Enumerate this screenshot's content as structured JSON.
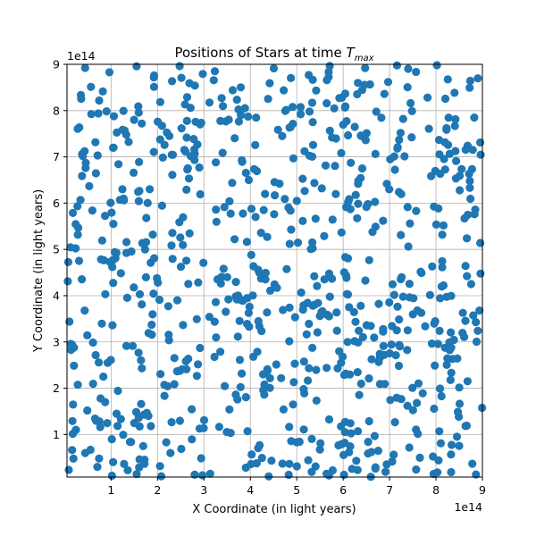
{
  "chart_data": {
    "type": "scatter",
    "title": "Positions of Stars at time T_max",
    "title_main": "Positions of Stars at time ",
    "title_italic": "T",
    "title_subscript": "max",
    "xlabel": "X Coordinate (in light years)",
    "ylabel": "Y Coordinate (in light years)",
    "x_offset_label": "1e14",
    "y_offset_label": "1e14",
    "xlim": [
      0.05,
      9.0
    ],
    "ylim": [
      0.08,
      9.0
    ],
    "x_ticks": [
      1,
      2,
      3,
      4,
      5,
      6,
      7,
      8,
      9
    ],
    "y_ticks": [
      1,
      2,
      3,
      4,
      5,
      6,
      7,
      8,
      9
    ],
    "x_tick_labels": [
      "1",
      "2",
      "3",
      "4",
      "5",
      "6",
      "7",
      "8",
      "9"
    ],
    "y_tick_labels": [
      "1",
      "2",
      "3",
      "4",
      "5",
      "6",
      "7",
      "8",
      "9"
    ],
    "grid": true,
    "marker_color": "#1f77b4",
    "marker": "circle",
    "n_points": 800,
    "series": [
      {
        "x": [],
        "y": []
      }
    ]
  }
}
